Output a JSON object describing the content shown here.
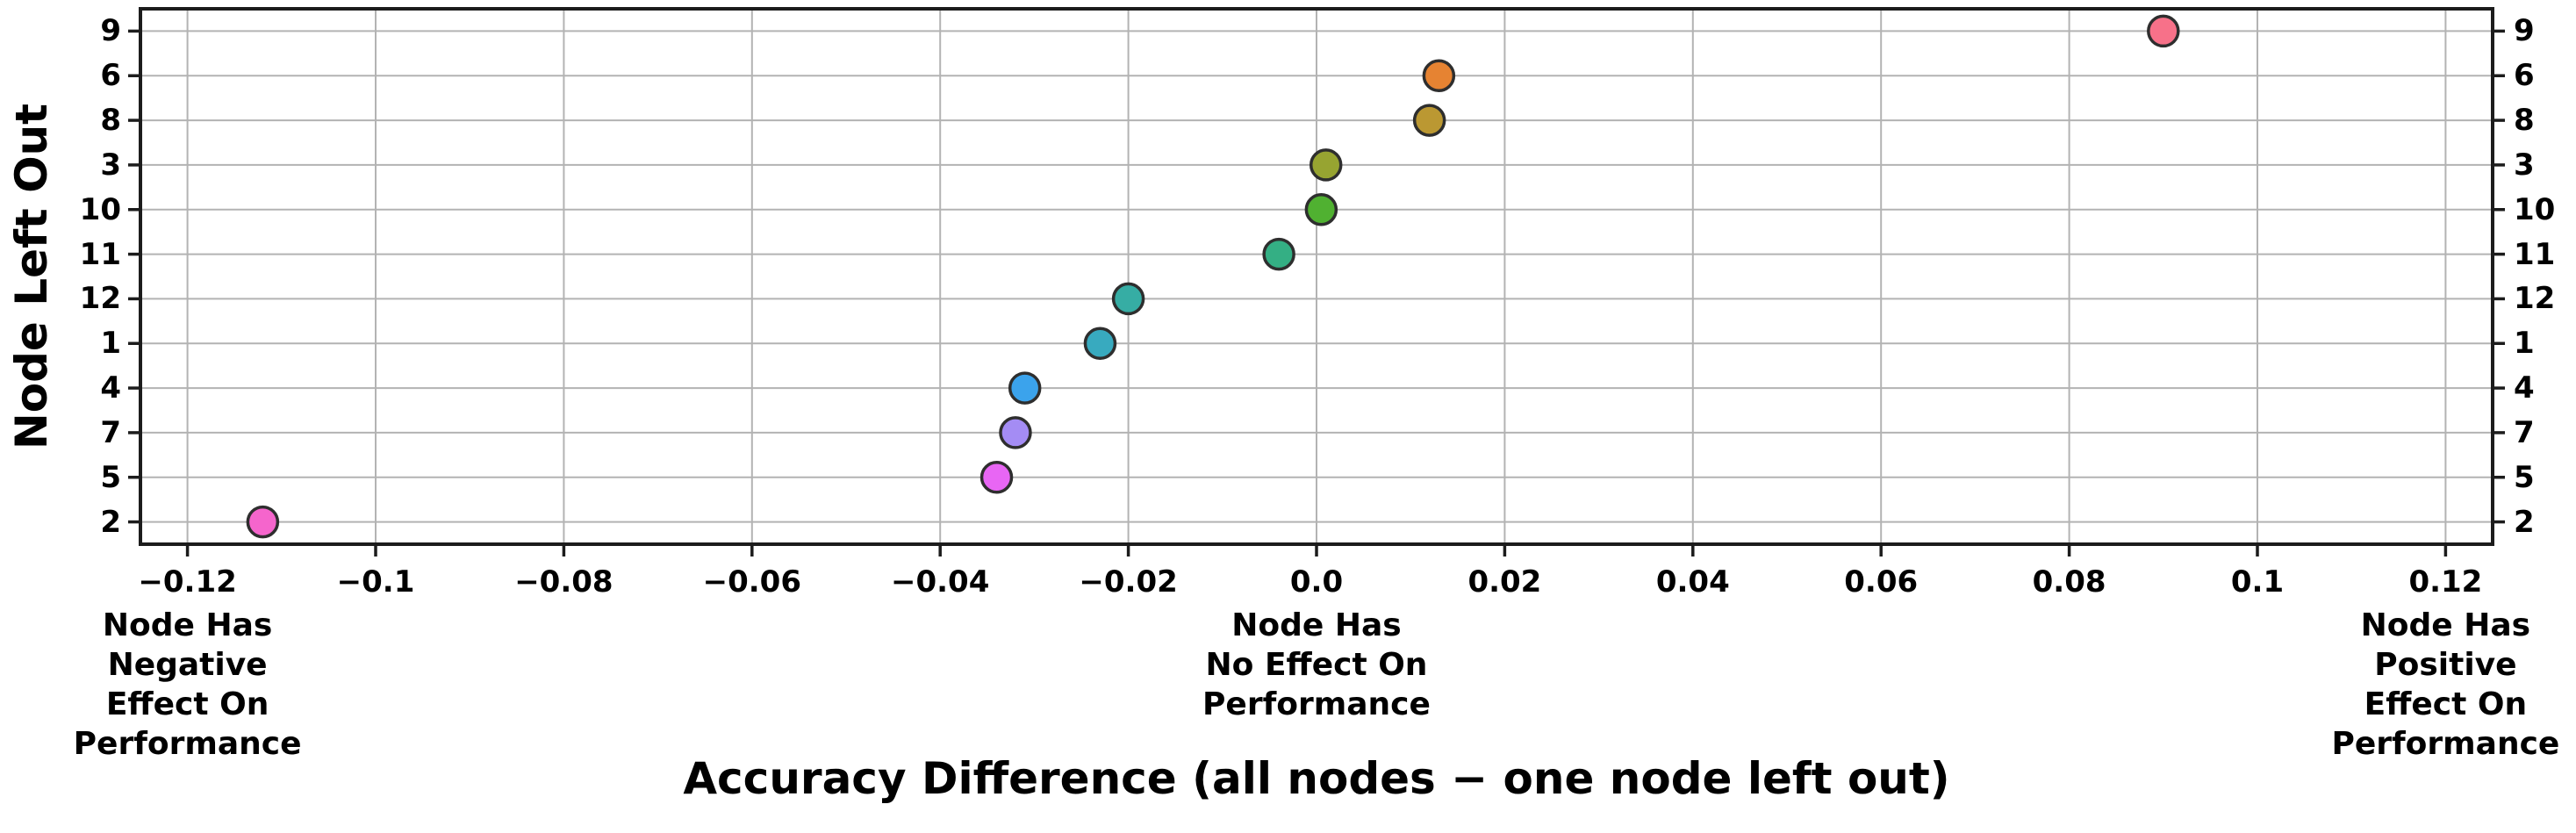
{
  "chart_data": {
    "type": "scatter",
    "title": "",
    "xlabel": "Accuracy Difference (all nodes − one node left out)",
    "ylabel": "Node Left Out",
    "grid": true,
    "legend": false,
    "xlim": [
      -0.125,
      0.125
    ],
    "categories": [
      "9",
      "6",
      "8",
      "3",
      "10",
      "11",
      "12",
      "1",
      "4",
      "7",
      "5",
      "2"
    ],
    "points": [
      {
        "node": "9",
        "x": 0.09,
        "color": "#f77189"
      },
      {
        "node": "6",
        "x": 0.013,
        "color": "#e68332"
      },
      {
        "node": "8",
        "x": 0.012,
        "color": "#bb9832"
      },
      {
        "node": "3",
        "x": 0.001,
        "color": "#97a431"
      },
      {
        "node": "10",
        "x": 0.0005,
        "color": "#50b131"
      },
      {
        "node": "11",
        "x": -0.004,
        "color": "#34af84"
      },
      {
        "node": "12",
        "x": -0.02,
        "color": "#36ada4"
      },
      {
        "node": "1",
        "x": -0.023,
        "color": "#38aabf"
      },
      {
        "node": "4",
        "x": -0.031,
        "color": "#3ba3ec"
      },
      {
        "node": "7",
        "x": -0.032,
        "color": "#a48cf4"
      },
      {
        "node": "5",
        "x": -0.034,
        "color": "#e866f4"
      },
      {
        "node": "2",
        "x": -0.112,
        "color": "#f565cc"
      }
    ],
    "xticks": [
      {
        "label": "−0.12",
        "value": -0.12
      },
      {
        "label": "−0.1",
        "value": -0.1
      },
      {
        "label": "−0.08",
        "value": -0.08
      },
      {
        "label": "−0.06",
        "value": -0.06
      },
      {
        "label": "−0.04",
        "value": -0.04
      },
      {
        "label": "−0.02",
        "value": -0.02
      },
      {
        "label": "0.0",
        "value": 0.0
      },
      {
        "label": "0.02",
        "value": 0.02
      },
      {
        "label": "0.04",
        "value": 0.04
      },
      {
        "label": "0.06",
        "value": 0.06
      },
      {
        "label": "0.08",
        "value": 0.08
      },
      {
        "label": "0.1",
        "value": 0.1
      },
      {
        "label": "0.12",
        "value": 0.12
      }
    ],
    "annotations": [
      {
        "text": "Node Has\nNegative\nEffect On\nPerformance",
        "at": -0.12
      },
      {
        "text": "Node Has\nNo Effect On\nPerformance",
        "at": 0.0
      },
      {
        "text": "Node Has\nPositive\nEffect On\nPerformance",
        "at": 0.12
      }
    ],
    "style": {
      "background": "#ffffff",
      "grid_color": "#b3b3b3",
      "spine_color": "#1c1c1c",
      "tick_color": "#1c1c1c",
      "dot_edge_color": "#2e2e2e",
      "text_color": "#000000"
    }
  }
}
